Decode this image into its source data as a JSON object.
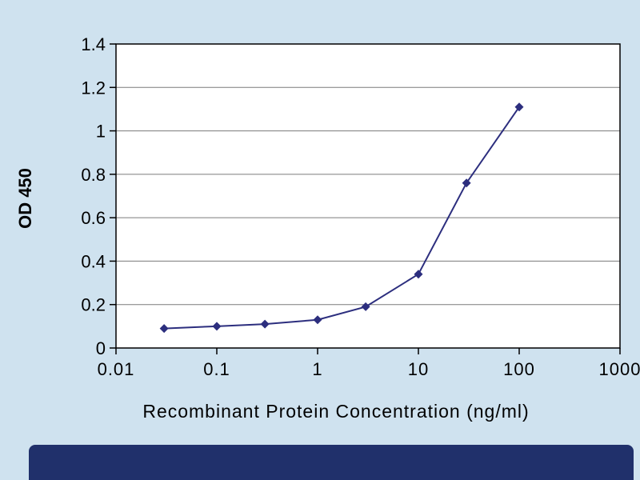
{
  "chart_data": {
    "type": "line",
    "title": "",
    "xlabel": "Recombinant Protein Concentration (ng/ml)",
    "ylabel": "OD 450",
    "x_scale": "log",
    "xlim": [
      0.01,
      1000
    ],
    "ylim": [
      0,
      1.4
    ],
    "x_ticks": [
      0.01,
      0.1,
      1,
      10,
      100,
      1000
    ],
    "x_tick_labels": [
      "0.01",
      "0.1",
      "1",
      "10",
      "100",
      "1000"
    ],
    "y_ticks": [
      0,
      0.2,
      0.4,
      0.6,
      0.8,
      1,
      1.2,
      1.4
    ],
    "y_tick_labels": [
      "0",
      "0.2",
      "0.4",
      "0.6",
      "0.8",
      "1",
      "1.2",
      "1.4"
    ],
    "grid": "horizontal",
    "legend": "none",
    "series": [
      {
        "name": "OD 450",
        "marker": "diamond",
        "color": "#2c2e7e",
        "x": [
          0.03,
          0.1,
          0.3,
          1,
          3,
          10,
          30,
          100
        ],
        "y": [
          0.09,
          0.1,
          0.11,
          0.13,
          0.19,
          0.34,
          0.76,
          1.11
        ]
      }
    ]
  },
  "colors": {
    "background": "#cfe2ef",
    "plot_bg": "#ffffff",
    "grid": "#7a7a7a",
    "axis": "#000000",
    "line": "#2c2e7e",
    "bottom_bar": "#20306b"
  }
}
